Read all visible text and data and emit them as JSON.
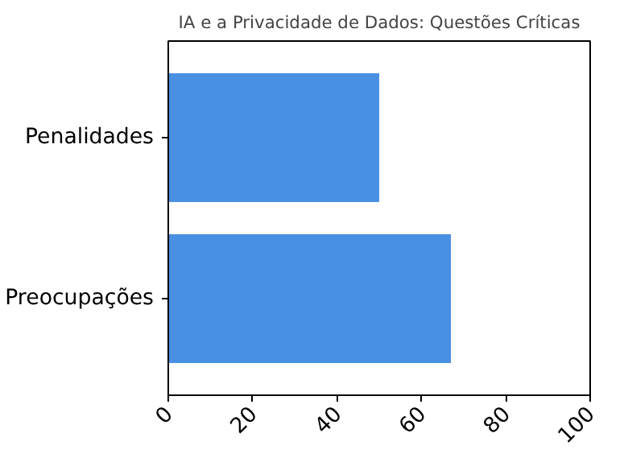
{
  "chart_data": {
    "type": "bar",
    "orientation": "horizontal",
    "title": "IA e a Privacidade de Dados: Questões Críticas",
    "categories": [
      "Penalidades",
      "Preocupações"
    ],
    "values": [
      50,
      67
    ],
    "color": "#4a90e2",
    "xlim": [
      0,
      100
    ],
    "xticks": [
      0,
      20,
      40,
      60,
      80,
      100
    ],
    "grid": false
  }
}
